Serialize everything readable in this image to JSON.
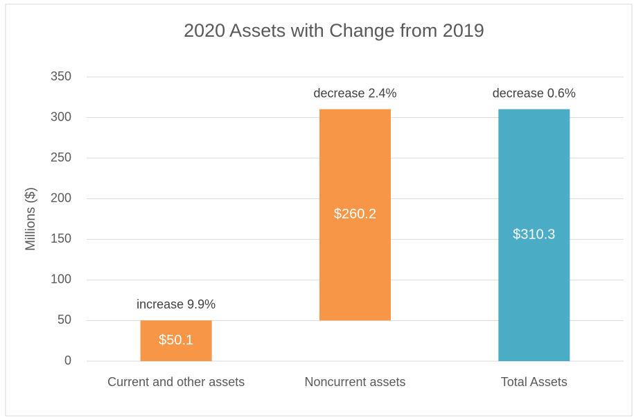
{
  "chart_data": {
    "type": "waterfall",
    "title": "2020 Assets with Change from 2019",
    "y_label": "Millions ($)",
    "categories": [
      "Current and other assets",
      "Noncurrent assets",
      "Total Assets"
    ],
    "values": [
      50.1,
      260.2,
      310.3
    ],
    "value_labels": [
      "$50.1",
      "$260.2",
      "$310.3"
    ],
    "annotations": [
      "increase 9.9%",
      "decrease 2.4%",
      "decrease 0.6%"
    ],
    "measures": [
      "relative",
      "relative",
      "total"
    ],
    "colors": [
      "#f79646",
      "#f79646",
      "#4bacc6"
    ],
    "ylim": [
      0,
      350
    ],
    "yticks": [
      0,
      50,
      100,
      150,
      200,
      250,
      300,
      350
    ],
    "grid": true
  }
}
